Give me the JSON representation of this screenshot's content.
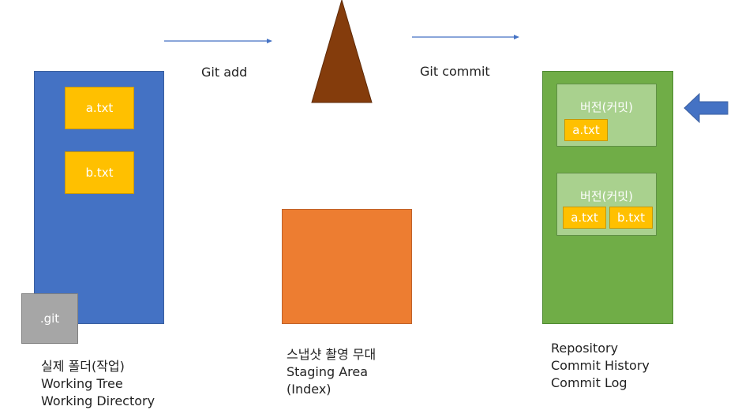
{
  "git_add": "Git add",
  "git_commit": "Git commit",
  "working_tree": {
    "files": [
      "a.txt",
      "b.txt"
    ],
    "git_folder": ".git",
    "caption": [
      "실제 폴더(작업)",
      "Working Tree",
      "Working Directory"
    ]
  },
  "staging": {
    "caption": [
      "스냅샷 촬영 무대",
      "Staging Area",
      "(Index)"
    ]
  },
  "repository": {
    "commits": [
      {
        "label": "버전(커밋)",
        "files": [
          "a.txt"
        ]
      },
      {
        "label": "버전(커밋)",
        "files": [
          "a.txt",
          "b.txt"
        ]
      }
    ],
    "caption": [
      "Repository",
      "Commit History",
      "Commit Log"
    ]
  },
  "colors": {
    "working_tree": "#4472c4",
    "file": "#ffc000",
    "git_folder": "#a6a6a6",
    "staging": "#ed7d31",
    "repository": "#70ad47",
    "commit": "#a9d18e",
    "camera": "#843c0c",
    "arrow": "#4472c4"
  },
  "icons": [
    "arrow-right-icon",
    "camera-triangle-icon",
    "pointer-arrow-left-icon"
  ]
}
